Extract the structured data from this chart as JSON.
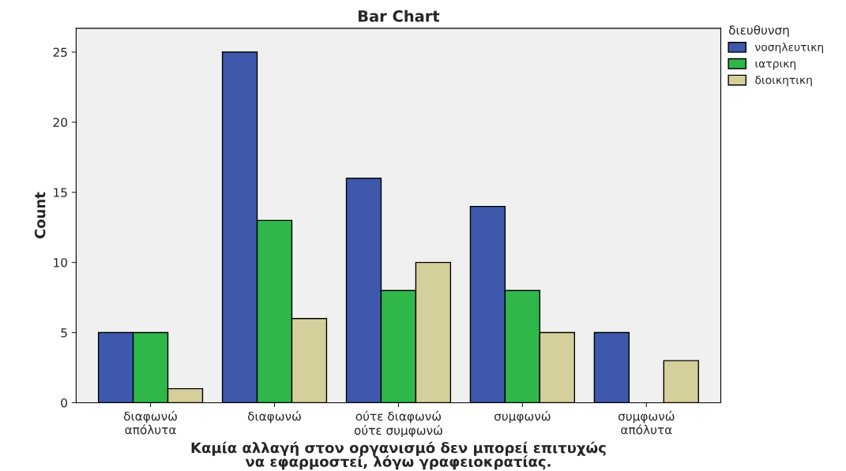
{
  "chart_data": {
    "type": "bar",
    "title": "Bar Chart",
    "xlabel": "Καμία αλλαγή στον οργανισμό δεν μπορεί επιτυχώς\nνα εφαρμοστεί, λόγω γραφειοκρατίας.",
    "ylabel": "Count",
    "legend_title": "διευθυνση",
    "categories": [
      "διαφωνώ\nαπόλυτα",
      "διαφωνώ",
      "ούτε διαφωνώ\nούτε συμφωνώ",
      "συμφωνώ",
      "συμφωνώ\nαπόλυτα"
    ],
    "series": [
      {
        "name": "νοσηλευτικη",
        "color": "#3e58ac",
        "values": [
          5,
          25,
          16,
          14,
          5
        ]
      },
      {
        "name": "ιατρικη",
        "color": "#2fb74a",
        "values": [
          5,
          13,
          8,
          8,
          null
        ]
      },
      {
        "name": "διοικητικη",
        "color": "#d5cf9b",
        "values": [
          1,
          6,
          10,
          5,
          3
        ]
      }
    ],
    "ylim": [
      0,
      26.7
    ],
    "yticks": [
      0,
      5,
      10,
      15,
      20,
      25
    ],
    "grid": false,
    "legend": "right"
  }
}
